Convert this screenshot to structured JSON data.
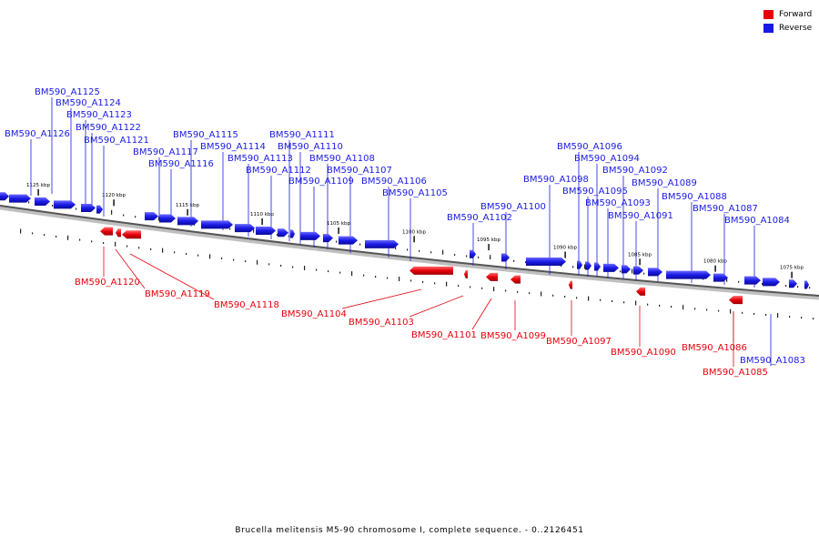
{
  "legend": {
    "forward": {
      "label": "Forward",
      "color": "#e8000b"
    },
    "reverse": {
      "label": "Reverse",
      "color": "#1a1ae6"
    }
  },
  "caption": "Brucella melitensis M5-90 chromosome I, complete sequence. - 0..2126451",
  "scale_labels": [
    "1125 kbp",
    "1120 kbp",
    "1115 kbp",
    "1110 kbp",
    "1105 kbp",
    "1100 kbp",
    "1095 kbp",
    "1090 kbp",
    "1085 kbp",
    "1080 kbp",
    "1075 kbp"
  ],
  "genes_reverse": [
    "BM590_A1126",
    "BM590_A1125",
    "BM590_A1124",
    "BM590_A1123",
    "BM590_A1122",
    "BM590_A1121",
    "BM590_A1117",
    "BM590_A1116",
    "BM590_A1115",
    "BM590_A1114",
    "BM590_A1113",
    "BM590_A1112",
    "BM590_A1111",
    "BM590_A1110",
    "BM590_A1109",
    "BM590_A1108",
    "BM590_A1107",
    "BM590_A1106",
    "BM590_A1105",
    "BM590_A1102",
    "BM590_A1100",
    "BM590_A1098",
    "BM590_A1096",
    "BM590_A1095",
    "BM590_A1094",
    "BM590_A1093",
    "BM590_A1092",
    "BM590_A1091",
    "BM590_A1089",
    "BM590_A1088",
    "BM590_A1087",
    "BM590_A1084",
    "BM590_A1083"
  ],
  "genes_forward": [
    "BM590_A1120",
    "BM590_A1119",
    "BM590_A1118",
    "BM590_A1104",
    "BM590_A1103",
    "BM590_A1101",
    "BM590_A1099",
    "BM590_A1097",
    "BM590_A1090",
    "BM590_A1086",
    "BM590_A1085"
  ]
}
